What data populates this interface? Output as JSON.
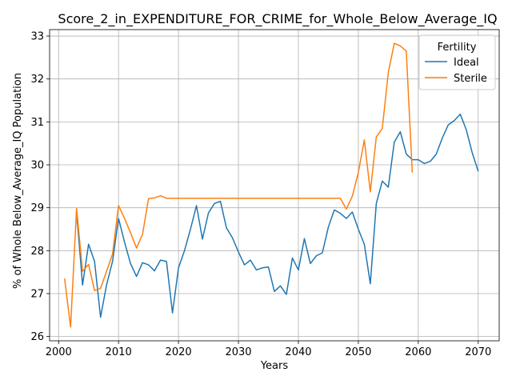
{
  "chart_data": {
    "type": "line",
    "title": "Score_2_in_EXPENDITURE_FOR_CRIME_for_Whole_Below_Average_IQ",
    "xlabel": "Years",
    "ylabel": "% of Whole Below_Average_IQ Population",
    "xlim": [
      1998.5,
      2073.5
    ],
    "ylim": [
      25.9,
      33.15
    ],
    "xticks": [
      2000,
      2010,
      2020,
      2030,
      2040,
      2050,
      2060,
      2070
    ],
    "yticks": [
      26,
      27,
      28,
      29,
      30,
      31,
      32,
      33
    ],
    "grid": true,
    "legend": {
      "title": "Fertility",
      "placement": "top-right"
    },
    "series": [
      {
        "name": "Ideal",
        "color": "#1f77b4",
        "x": [
          2003,
          2004,
          2005,
          2006,
          2007,
          2008,
          2009,
          2010,
          2011,
          2012,
          2013,
          2014,
          2015,
          2016,
          2017,
          2018,
          2019,
          2020,
          2021,
          2022,
          2023,
          2024,
          2025,
          2026,
          2027,
          2028,
          2029,
          2030,
          2031,
          2032,
          2033,
          2034,
          2035,
          2036,
          2037,
          2038,
          2039,
          2040,
          2041,
          2042,
          2043,
          2044,
          2045,
          2046,
          2047,
          2048,
          2049,
          2050,
          2051,
          2052,
          2053,
          2054,
          2055,
          2056,
          2057,
          2058,
          2059,
          2060,
          2061,
          2062,
          2063,
          2064,
          2065,
          2066,
          2067,
          2068,
          2069,
          2070
        ],
        "y": [
          28.9,
          27.2,
          28.15,
          27.75,
          26.45,
          27.2,
          27.75,
          28.75,
          28.2,
          27.7,
          27.4,
          27.72,
          27.67,
          27.53,
          27.78,
          27.75,
          26.55,
          27.6,
          28.0,
          28.5,
          29.05,
          28.27,
          28.88,
          29.1,
          29.15,
          28.53,
          28.3,
          27.97,
          27.67,
          27.78,
          27.55,
          27.6,
          27.62,
          27.05,
          27.18,
          26.98,
          27.83,
          27.55,
          28.28,
          27.7,
          27.88,
          27.95,
          28.55,
          28.95,
          28.87,
          28.75,
          28.9,
          28.5,
          28.15,
          27.23,
          29.1,
          29.62,
          29.48,
          30.53,
          30.77,
          30.25,
          30.12,
          30.12,
          30.03,
          30.08,
          30.25,
          30.62,
          30.93,
          31.03,
          31.18,
          30.82,
          30.28,
          29.85
        ]
      },
      {
        "name": "Sterile",
        "color": "#ff7f0e",
        "x": [
          2001,
          2002,
          2003,
          2004,
          2005,
          2006,
          2007,
          2008,
          2009,
          2010,
          2011,
          2012,
          2013,
          2014,
          2015,
          2016,
          2017,
          2018,
          2019,
          2020,
          2021,
          2022,
          2023,
          2024,
          2025,
          2026,
          2027,
          2028,
          2029,
          2030,
          2031,
          2032,
          2033,
          2034,
          2035,
          2036,
          2037,
          2038,
          2039,
          2040,
          2041,
          2042,
          2043,
          2044,
          2045,
          2046,
          2047,
          2048,
          2049,
          2050,
          2051,
          2052,
          2053,
          2054,
          2055,
          2056,
          2057,
          2058,
          2059
        ],
        "y": [
          27.35,
          26.22,
          28.98,
          27.52,
          27.68,
          27.07,
          27.12,
          27.52,
          27.92,
          29.05,
          28.75,
          28.42,
          28.06,
          28.38,
          29.21,
          29.23,
          29.28,
          29.22,
          29.22,
          29.22,
          29.22,
          29.22,
          29.22,
          29.22,
          29.22,
          29.22,
          29.22,
          29.22,
          29.22,
          29.22,
          29.22,
          29.22,
          29.22,
          29.22,
          29.22,
          29.22,
          29.22,
          29.22,
          29.22,
          29.22,
          29.22,
          29.22,
          29.22,
          29.22,
          29.22,
          29.22,
          29.22,
          28.97,
          29.27,
          29.82,
          30.58,
          29.37,
          30.65,
          30.85,
          32.15,
          32.83,
          32.77,
          32.65,
          29.82
        ]
      }
    ]
  }
}
